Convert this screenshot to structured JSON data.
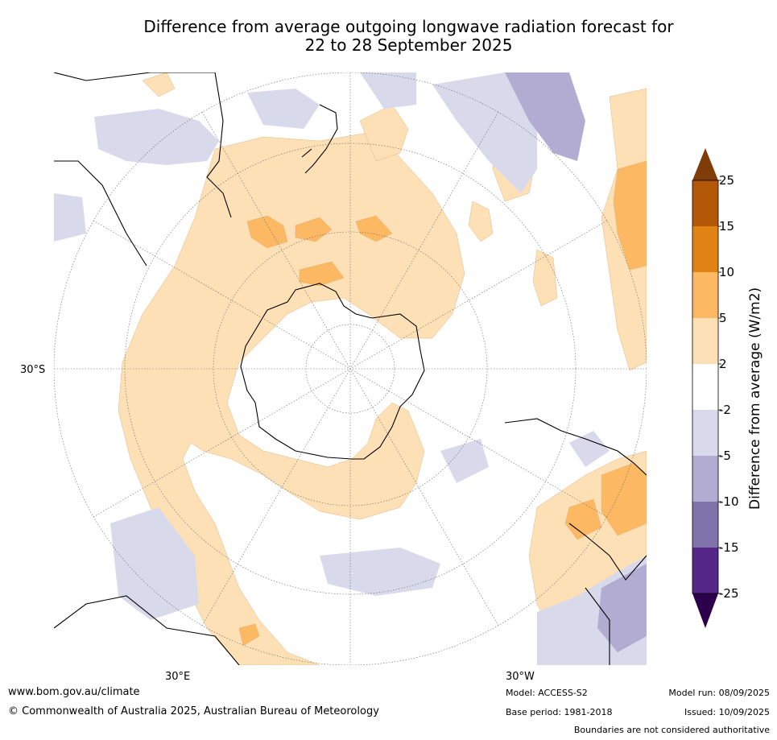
{
  "title": {
    "line1": "Difference from average outgoing longwave radiation forecast for",
    "line2": "22 to 28 September 2025"
  },
  "map": {
    "projection": "south polar stereographic",
    "labels": {
      "lat_30s": "30°S",
      "lon_30e": "30°E",
      "lon_30w": "30°W"
    }
  },
  "colorbar": {
    "title": "Difference from average (W/m2)",
    "ticks": [
      "25",
      "15",
      "10",
      "5",
      "2",
      "-2",
      "-5",
      "-10",
      "-15",
      "-25"
    ],
    "colors": {
      "above_25": "#7f3b08",
      "15_25": "#b35806",
      "10_15": "#e08214",
      "5_10": "#fdb863",
      "2_5": "#fee0b6",
      "neutral": "#ffffff",
      "m5_m2": "#d8daeb",
      "m10_m5": "#b2abd2",
      "m15_m10": "#8073ac",
      "m25_m15": "#542788",
      "below_m25": "#2d004b"
    }
  },
  "footer": {
    "website": "www.bom.gov.au/climate",
    "copyright": "© Commonwealth of Australia 2025, Australian Bureau of Meteorology",
    "model": "Model: ACCESS-S2",
    "base_period": "Base period: 1981-2018",
    "model_run": "Model run: 08/09/2025",
    "issued": "Issued: 10/09/2025",
    "disclaimer": "Boundaries are not considered authoritative"
  }
}
